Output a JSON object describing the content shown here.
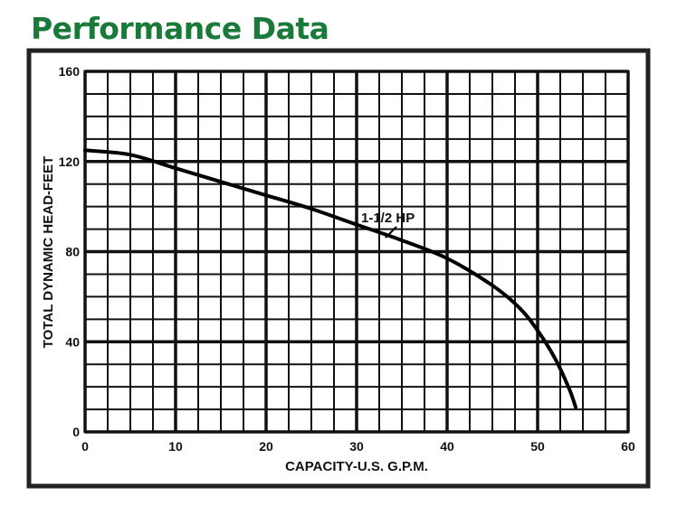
{
  "header": {
    "title": "Performance Data"
  },
  "colors": {
    "title": "#1a7a3a",
    "frame": "#222222",
    "grid": "#111111",
    "curve": "#000000"
  },
  "chart_data": {
    "type": "line",
    "title": "",
    "xlabel": "CAPACITY-U.S. G.P.M.",
    "ylabel": "TOTAL DYNAMIC HEAD-FEET",
    "xlim": [
      0,
      60
    ],
    "ylim": [
      0,
      160
    ],
    "x_ticks": [
      0,
      10,
      20,
      30,
      40,
      50,
      60
    ],
    "y_ticks": [
      0,
      40,
      80,
      120,
      160
    ],
    "x_minor_step": 2.5,
    "y_minor_step": 10,
    "grid": true,
    "series": [
      {
        "name": "1-1/2 HP",
        "points": [
          [
            0,
            125
          ],
          [
            5,
            123
          ],
          [
            10,
            117
          ],
          [
            15,
            111
          ],
          [
            20,
            105
          ],
          [
            25,
            99
          ],
          [
            30,
            92
          ],
          [
            35,
            85
          ],
          [
            40,
            77
          ],
          [
            45,
            65
          ],
          [
            48,
            55
          ],
          [
            50,
            45
          ],
          [
            52,
            32
          ],
          [
            53.5,
            19
          ],
          [
            54.2,
            11
          ]
        ]
      }
    ]
  }
}
